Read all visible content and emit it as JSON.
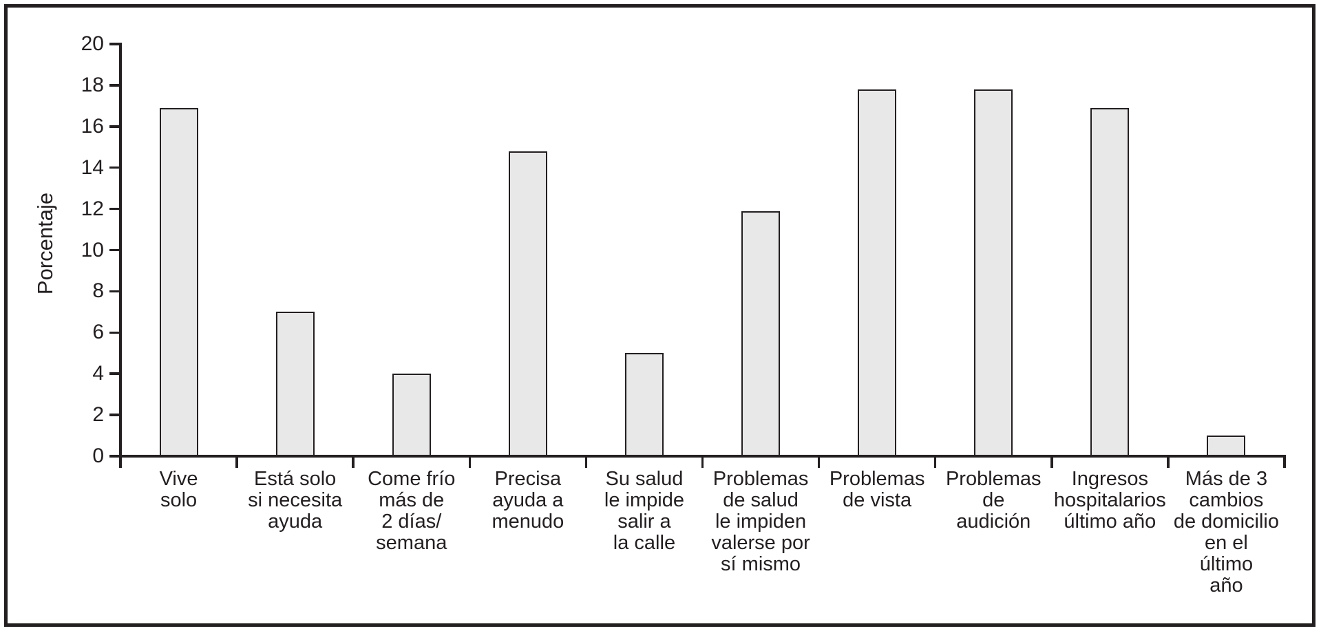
{
  "chart_data": {
    "type": "bar",
    "title": "",
    "xlabel": "",
    "ylabel": "Porcentaje",
    "ylim": [
      0,
      20
    ],
    "ytick_step": 2,
    "grid": false,
    "legend_position": "none",
    "bar_fill_color": "#e8e8e8",
    "bar_border_color": "#231f20",
    "axis_color": "#231f20",
    "categories": [
      "Vive solo",
      "Está solo si necesita ayuda",
      "Come frío más de 2 días/semana",
      "Precisa ayuda a menudo",
      "Su salud le impide salir a la calle",
      "Problemas de salud le impiden valerse por sí mismo",
      "Problemas de vista",
      "Problemas de audición",
      "Ingresos hospitalarios último año",
      "Más de 3 cambios de domicilio en el último año"
    ],
    "category_label_lines": [
      [
        "Vive",
        "solo"
      ],
      [
        "Está solo",
        "si necesita",
        "ayuda"
      ],
      [
        "Come frío",
        "más de",
        "2 días/",
        "semana"
      ],
      [
        "Precisa",
        "ayuda a",
        "menudo"
      ],
      [
        "Su salud",
        "le impide",
        "salir a",
        "la calle"
      ],
      [
        "Problemas",
        "de salud",
        "le impiden",
        "valerse por",
        "sí mismo"
      ],
      [
        "Problemas",
        "de vista"
      ],
      [
        "Problemas",
        "de",
        "audición"
      ],
      [
        "Ingresos",
        "hospitalarios",
        "último año"
      ],
      [
        "Más de 3",
        "cambios",
        "de domicilio",
        "en el",
        "último",
        "año"
      ]
    ],
    "values": [
      16.9,
      7.0,
      4.0,
      14.8,
      5.0,
      11.9,
      17.8,
      17.8,
      16.9,
      1.0
    ]
  }
}
